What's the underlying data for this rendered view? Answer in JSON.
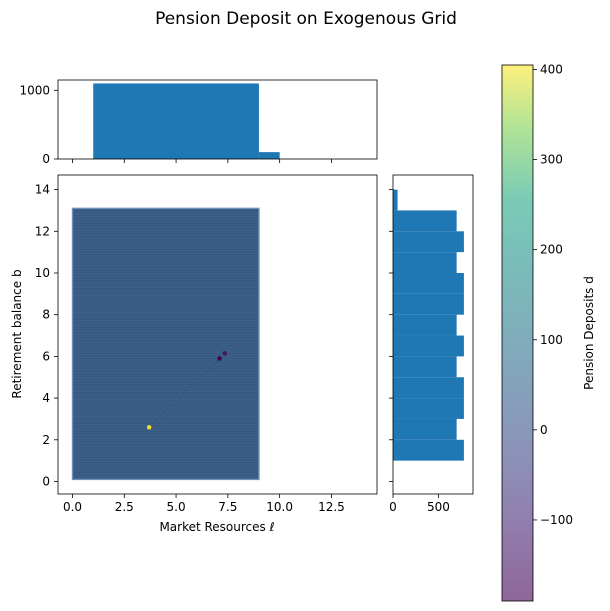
{
  "title": "Pension Deposit on Exogenous Grid",
  "colors": {
    "bar": "#1f77b4",
    "scatter": "#3b5f86",
    "axis": "#000000"
  },
  "chart_data": [
    {
      "type": "scatter",
      "role": "main",
      "xlabel": "Market Resources ℓ",
      "ylabel": "Retirement balance b",
      "xlim": [
        -0.7,
        14.7
      ],
      "ylim": [
        -0.6,
        14.7
      ],
      "xticks": [
        0.0,
        2.5,
        5.0,
        7.5,
        10.0,
        12.5
      ],
      "xtick_labels": [
        "0.0",
        "2.5",
        "5.0",
        "7.5",
        "10.0",
        "12.5"
      ],
      "yticks": [
        0,
        2,
        4,
        6,
        8,
        10,
        12,
        14
      ],
      "ytick_labels": [
        "0",
        "2",
        "4",
        "6",
        "8",
        "10",
        "12",
        "14"
      ],
      "grid_region": {
        "x": [
          0.0,
          9.0
        ],
        "y": [
          0.1,
          13.1
        ]
      },
      "base_value": 0,
      "highlights": [
        {
          "x": 3.7,
          "y": 2.6,
          "d": 400
        },
        {
          "x": 7.1,
          "y": 5.9,
          "d": -190
        },
        {
          "x": 7.35,
          "y": 6.15,
          "d": -150
        }
      ]
    },
    {
      "type": "bar",
      "role": "top-histogram",
      "bins": [
        {
          "start": 0,
          "end": 1,
          "count": 0
        },
        {
          "start": 1,
          "end": 9,
          "count": 1100
        },
        {
          "start": 9,
          "end": 10,
          "count": 100
        },
        {
          "start": 10,
          "end": 15,
          "count": 0
        }
      ],
      "ylim": [
        0,
        1150
      ],
      "yticks": [
        0,
        1000
      ],
      "ytick_labels": [
        "0",
        "1000"
      ]
    },
    {
      "type": "bar",
      "role": "right-histogram",
      "orientation": "horizontal",
      "bins": [
        {
          "start": 1.0,
          "end": 2.0,
          "count": 780
        },
        {
          "start": 2.0,
          "end": 3.0,
          "count": 700
        },
        {
          "start": 3.0,
          "end": 4.0,
          "count": 780
        },
        {
          "start": 4.0,
          "end": 5.0,
          "count": 780
        },
        {
          "start": 5.0,
          "end": 6.0,
          "count": 700
        },
        {
          "start": 6.0,
          "end": 7.0,
          "count": 780
        },
        {
          "start": 7.0,
          "end": 8.0,
          "count": 700
        },
        {
          "start": 8.0,
          "end": 9.0,
          "count": 780
        },
        {
          "start": 9.0,
          "end": 10.0,
          "count": 780
        },
        {
          "start": 10.0,
          "end": 11.0,
          "count": 700
        },
        {
          "start": 11.0,
          "end": 12.0,
          "count": 780
        },
        {
          "start": 12.0,
          "end": 13.0,
          "count": 700
        },
        {
          "start": 13.0,
          "end": 14.0,
          "count": 50
        }
      ],
      "xlim": [
        0,
        880
      ],
      "xticks": [
        0,
        500
      ],
      "xtick_labels": [
        "0",
        "500"
      ]
    },
    {
      "type": "colorbar",
      "label": "Pension Deposits d",
      "range": [
        -190,
        405
      ],
      "ticks": [
        -100,
        0,
        100,
        200,
        300,
        400
      ],
      "tick_labels": [
        "−100",
        "0",
        "100",
        "200",
        "300",
        "400"
      ],
      "colormap": "viridis",
      "alpha": 0.6
    }
  ]
}
